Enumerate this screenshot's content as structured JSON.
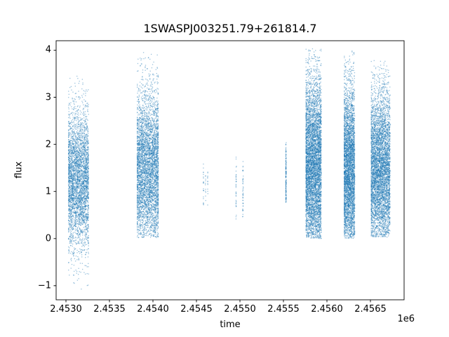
{
  "chart_data": {
    "type": "scatter",
    "title": "1SWASPJ003251.79+261814.7",
    "xlabel": "time",
    "ylabel": "flux",
    "x_offset_text": "1e6",
    "xlim": [
      2452887,
      2456887
    ],
    "ylim": [
      -1.3,
      4.2
    ],
    "xticks": [
      2453000,
      2453500,
      2454000,
      2454500,
      2455000,
      2455500,
      2456000,
      2456500
    ],
    "xtick_labels": [
      "2.4530",
      "2.4535",
      "2.4540",
      "2.4545",
      "2.4550",
      "2.4555",
      "2.4560",
      "2.4565"
    ],
    "yticks": [
      -1,
      0,
      1,
      2,
      3,
      4
    ],
    "ytick_labels": [
      "−1",
      "0",
      "1",
      "2",
      "3",
      "4"
    ],
    "grid": false,
    "legend": "none",
    "marker_color": "#1f77b4",
    "marker_alpha": 0.45,
    "marker_size": 1.3,
    "clusters": [
      {
        "name": "run-1",
        "t_range": [
          2453030,
          2453260
        ],
        "flux_range": [
          -1.15,
          3.45
        ],
        "flux_mean": 1.25,
        "flux_sd": 0.75,
        "n": 3500,
        "stria": 16,
        "jitter": 5
      },
      {
        "name": "run-2",
        "t_range": [
          2453820,
          2454060
        ],
        "flux_range": [
          0.02,
          3.95
        ],
        "flux_mean": 1.45,
        "flux_sd": 0.85,
        "n": 4200,
        "stria": 16,
        "jitter": 5
      },
      {
        "name": "run-3",
        "t_range": [
          2454580,
          2454635
        ],
        "flux_range": [
          0.65,
          1.6
        ],
        "flux_mean": 1.1,
        "flux_sd": 0.3,
        "n": 45,
        "stria": 25,
        "jitter": 1.5
      },
      {
        "name": "run-4",
        "t_range": [
          2454955,
          2455065
        ],
        "flux_range": [
          0.4,
          1.75
        ],
        "flux_mean": 1.1,
        "flux_sd": 0.4,
        "n": 80,
        "stria": 80,
        "jitter": 2
      },
      {
        "name": "run-5",
        "t_range": [
          2455528,
          2455560
        ],
        "flux_range": [
          0.75,
          2.05
        ],
        "flux_mean": 1.3,
        "flux_sd": 0.45,
        "n": 150,
        "stria": 40,
        "jitter": 3
      },
      {
        "name": "run-6",
        "t_range": [
          2455760,
          2455935
        ],
        "flux_range": [
          0.0,
          4.05
        ],
        "flux_mean": 1.5,
        "flux_sd": 1.0,
        "n": 5200,
        "stria": 14,
        "jitter": 5
      },
      {
        "name": "run-7",
        "t_range": [
          2456200,
          2456320
        ],
        "flux_range": [
          0.0,
          4.0
        ],
        "flux_mean": 1.4,
        "flux_sd": 0.95,
        "n": 3800,
        "stria": 16,
        "jitter": 5
      },
      {
        "name": "run-8",
        "t_range": [
          2456510,
          2456730
        ],
        "flux_range": [
          0.03,
          3.9
        ],
        "flux_mean": 1.4,
        "flux_sd": 0.9,
        "n": 4800,
        "stria": 16,
        "jitter": 5
      }
    ]
  }
}
